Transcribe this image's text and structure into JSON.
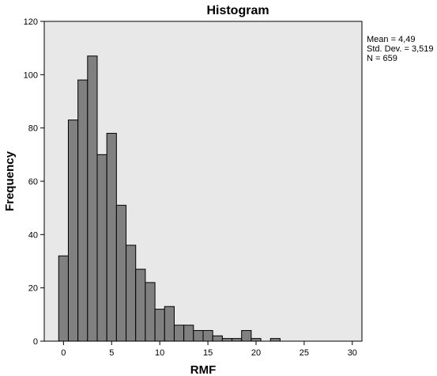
{
  "chart_data": {
    "type": "bar",
    "title": "Histogram",
    "xlabel": "RMF",
    "ylabel": "Frequency",
    "xlim": [
      -2,
      31
    ],
    "ylim": [
      0,
      120
    ],
    "x_ticks": [
      0,
      5,
      10,
      15,
      20,
      25,
      30
    ],
    "y_ticks": [
      0,
      20,
      40,
      60,
      80,
      100,
      120
    ],
    "bin_width": 1,
    "bins": [
      {
        "start": -0.5,
        "value": 32
      },
      {
        "start": 0.5,
        "value": 83
      },
      {
        "start": 1.5,
        "value": 98
      },
      {
        "start": 2.5,
        "value": 107
      },
      {
        "start": 3.5,
        "value": 70
      },
      {
        "start": 4.5,
        "value": 78
      },
      {
        "start": 5.5,
        "value": 51
      },
      {
        "start": 6.5,
        "value": 36
      },
      {
        "start": 7.5,
        "value": 27
      },
      {
        "start": 8.5,
        "value": 22
      },
      {
        "start": 9.5,
        "value": 12
      },
      {
        "start": 10.5,
        "value": 13
      },
      {
        "start": 11.5,
        "value": 6
      },
      {
        "start": 12.5,
        "value": 6
      },
      {
        "start": 13.5,
        "value": 4
      },
      {
        "start": 14.5,
        "value": 4
      },
      {
        "start": 15.5,
        "value": 2
      },
      {
        "start": 16.5,
        "value": 1
      },
      {
        "start": 17.5,
        "value": 1
      },
      {
        "start": 18.5,
        "value": 4
      },
      {
        "start": 19.5,
        "value": 1
      },
      {
        "start": 21.5,
        "value": 1
      }
    ],
    "grid": false,
    "colors": {
      "bar_fill": "#808080",
      "bar_stroke": "#000000",
      "plot_background": "#e8e8e8",
      "page_background": "#ffffff"
    }
  },
  "stats": {
    "mean": "Mean = 4,49",
    "std_dev": "Std. Dev. = 3,519",
    "n": "N = 659"
  }
}
